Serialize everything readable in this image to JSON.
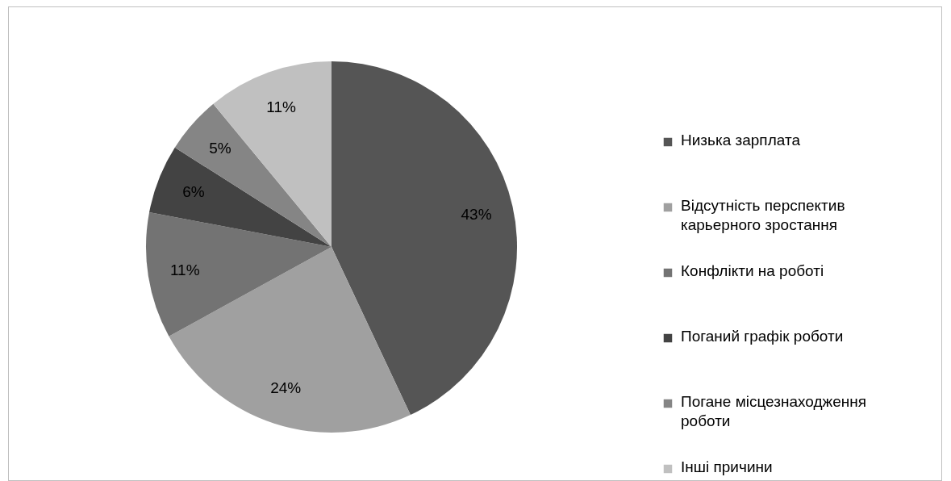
{
  "chart_data": {
    "type": "pie",
    "categories": [
      "Низька зарплата",
      "Відсутність перспектив карьерного зростання",
      "Конфлікти на роботі",
      "Поганий графік роботи",
      "Погане місцезнаходження роботи",
      "Інші причини"
    ],
    "values": [
      43,
      24,
      11,
      6,
      5,
      11
    ],
    "colors": [
      "#555555",
      "#a0a0a0",
      "#737373",
      "#434343",
      "#858585",
      "#c0c0c0"
    ],
    "value_labels": [
      "43%",
      "24%",
      "11%",
      "6%",
      "5%",
      "11%"
    ],
    "legend": "right"
  }
}
